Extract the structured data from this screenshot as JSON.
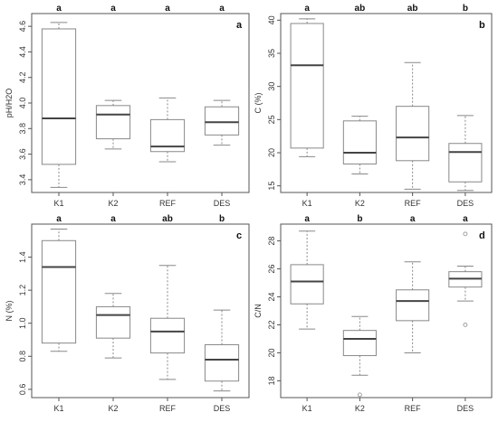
{
  "chart_data": [
    {
      "panel": "a",
      "type": "boxplot",
      "ylabel": "pH/H2O",
      "categories": [
        "K1",
        "K2",
        "REF",
        "DES"
      ],
      "significance": [
        "a",
        "a",
        "a",
        "a"
      ],
      "ylim": [
        3.3,
        4.7
      ],
      "yticks": [
        3.4,
        3.6,
        3.8,
        4.0,
        4.2,
        4.4,
        4.6
      ],
      "boxes": [
        {
          "min": 3.34,
          "q1": 3.52,
          "median": 3.88,
          "q3": 4.58,
          "max": 4.63,
          "outliers": []
        },
        {
          "min": 3.64,
          "q1": 3.72,
          "median": 3.91,
          "q3": 3.98,
          "max": 4.02,
          "outliers": []
        },
        {
          "min": 3.54,
          "q1": 3.62,
          "median": 3.66,
          "q3": 3.87,
          "max": 4.04,
          "outliers": []
        },
        {
          "min": 3.67,
          "q1": 3.75,
          "median": 3.85,
          "q3": 3.97,
          "max": 4.02,
          "outliers": []
        }
      ]
    },
    {
      "panel": "b",
      "type": "boxplot",
      "ylabel": "C (%)",
      "categories": [
        "K1",
        "K2",
        "REF",
        "DES"
      ],
      "significance": [
        "a",
        "ab",
        "ab",
        "b"
      ],
      "ylim": [
        14,
        41
      ],
      "yticks": [
        15,
        20,
        25,
        30,
        35,
        40
      ],
      "boxes": [
        {
          "min": 19.4,
          "q1": 20.7,
          "median": 33.2,
          "q3": 39.5,
          "max": 40.2,
          "outliers": []
        },
        {
          "min": 16.8,
          "q1": 18.3,
          "median": 20.0,
          "q3": 24.8,
          "max": 25.5,
          "outliers": []
        },
        {
          "min": 14.5,
          "q1": 18.8,
          "median": 22.3,
          "q3": 27.0,
          "max": 33.6,
          "outliers": []
        },
        {
          "min": 14.3,
          "q1": 15.6,
          "median": 20.1,
          "q3": 21.4,
          "max": 25.6,
          "outliers": []
        }
      ]
    },
    {
      "panel": "c",
      "type": "boxplot",
      "ylabel": "N (%)",
      "categories": [
        "K1",
        "K2",
        "REF",
        "DES"
      ],
      "significance": [
        "a",
        "a",
        "ab",
        "b"
      ],
      "ylim": [
        0.55,
        1.6
      ],
      "yticks": [
        0.6,
        0.8,
        1.0,
        1.2,
        1.4
      ],
      "boxes": [
        {
          "min": 0.83,
          "q1": 0.88,
          "median": 1.34,
          "q3": 1.5,
          "max": 1.57,
          "outliers": []
        },
        {
          "min": 0.79,
          "q1": 0.91,
          "median": 1.05,
          "q3": 1.1,
          "max": 1.18,
          "outliers": []
        },
        {
          "min": 0.66,
          "q1": 0.82,
          "median": 0.95,
          "q3": 1.03,
          "max": 1.35,
          "outliers": []
        },
        {
          "min": 0.59,
          "q1": 0.65,
          "median": 0.78,
          "q3": 0.87,
          "max": 1.08,
          "outliers": []
        }
      ]
    },
    {
      "panel": "d",
      "type": "boxplot",
      "ylabel": "C/N",
      "categories": [
        "K1",
        "K2",
        "REF",
        "DES"
      ],
      "significance": [
        "a",
        "b",
        "a",
        "a"
      ],
      "ylim": [
        16.8,
        29.2
      ],
      "yticks": [
        18,
        20,
        22,
        24,
        26,
        28
      ],
      "boxes": [
        {
          "min": 21.7,
          "q1": 23.5,
          "median": 25.1,
          "q3": 26.3,
          "max": 28.7,
          "outliers": []
        },
        {
          "min": 18.4,
          "q1": 19.8,
          "median": 21.0,
          "q3": 21.6,
          "max": 22.6,
          "outliers": [
            17.0
          ]
        },
        {
          "min": 20.0,
          "q1": 22.3,
          "median": 23.7,
          "q3": 24.5,
          "max": 26.5,
          "outliers": []
        },
        {
          "min": 23.7,
          "q1": 24.7,
          "median": 25.3,
          "q3": 25.8,
          "max": 26.2,
          "outliers": [
            28.5,
            22.0
          ]
        }
      ]
    }
  ]
}
